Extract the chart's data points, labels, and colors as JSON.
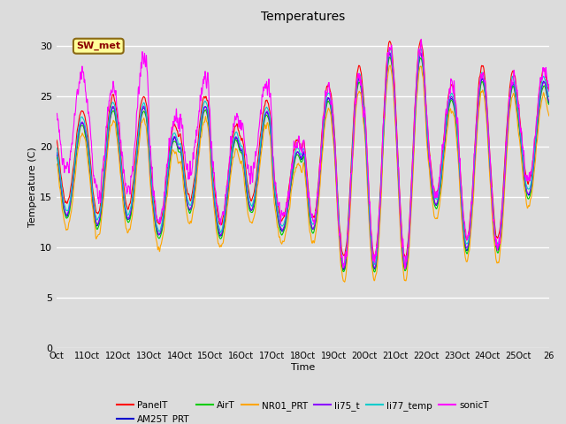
{
  "title": "Temperatures",
  "xlabel": "Time",
  "ylabel": "Temperature (C)",
  "ylim": [
    0,
    32
  ],
  "yticks": [
    0,
    5,
    10,
    15,
    20,
    25,
    30
  ],
  "x_labels": [
    "Oct",
    "11Oct",
    "12Oct",
    "13Oct",
    "14Oct",
    "15Oct",
    "16Oct",
    "17Oct",
    "18Oct",
    "19Oct",
    "20Oct",
    "21Oct",
    "22Oct",
    "23Oct",
    "24Oct",
    "25Oct",
    "26"
  ],
  "annotation_text": "SW_met",
  "annotation_color": "#8B0000",
  "annotation_bg": "#FFFF99",
  "bg_color": "#DCDCDC",
  "series_colors": {
    "PanelT": "#FF0000",
    "AM25T_PRT": "#0000CD",
    "AirT": "#00CC00",
    "NR01_PRT": "#FFA500",
    "li75_t": "#8B00FF",
    "li77_temp": "#00CCCC",
    "sonicT": "#FF00FF"
  },
  "n_points": 3840,
  "n_days": 16
}
